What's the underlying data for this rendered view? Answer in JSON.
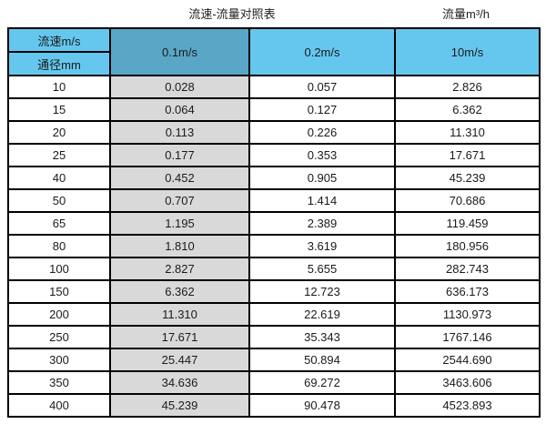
{
  "page": {
    "title_left": "流速-流量对照表",
    "title_right": "流量m³/h"
  },
  "table": {
    "corner": {
      "top": "流速m/s",
      "bottom": "通径mm"
    },
    "velocity_headers": [
      "0.1m/s",
      "0.2m/s",
      "10m/s"
    ],
    "rows": [
      [
        "10",
        "0.028",
        "0.057",
        "2.826"
      ],
      [
        "15",
        "0.064",
        "0.127",
        "6.362"
      ],
      [
        "20",
        "0.113",
        "0.226",
        "11.310"
      ],
      [
        "25",
        "0.177",
        "0.353",
        "17.671"
      ],
      [
        "40",
        "0.452",
        "0.905",
        "45.239"
      ],
      [
        "50",
        "0.707",
        "1.414",
        "70.686"
      ],
      [
        "65",
        "1.195",
        "2.389",
        "119.459"
      ],
      [
        "80",
        "1.810",
        "3.619",
        "180.956"
      ],
      [
        "100",
        "2.827",
        "5.655",
        "282.743"
      ],
      [
        "150",
        "6.362",
        "12.723",
        "636.173"
      ],
      [
        "200",
        "11.310",
        "22.619",
        "1130.973"
      ],
      [
        "250",
        "17.671",
        "35.343",
        "1767.146"
      ],
      [
        "300",
        "25.447",
        "50.894",
        "2544.690"
      ],
      [
        "350",
        "34.636",
        "69.272",
        "3463.606"
      ],
      [
        "400",
        "45.239",
        "90.478",
        "4523.893"
      ]
    ]
  },
  "colors": {
    "header_blue": "#66c7ee",
    "header_dark_blue": "#5aa6c7",
    "gray_column": "#d9d9d9",
    "border": "#000000",
    "text": "#1a1a1a"
  },
  "chart_data": {
    "type": "table",
    "title": "流速-流量对照表",
    "right_unit_label": "流量m³/h",
    "columns": [
      "通径mm",
      "0.1m/s",
      "0.2m/s",
      "10m/s"
    ],
    "rows": [
      [
        10,
        0.028,
        0.057,
        2.826
      ],
      [
        15,
        0.064,
        0.127,
        6.362
      ],
      [
        20,
        0.113,
        0.226,
        11.31
      ],
      [
        25,
        0.177,
        0.353,
        17.671
      ],
      [
        40,
        0.452,
        0.905,
        45.239
      ],
      [
        50,
        0.707,
        1.414,
        70.686
      ],
      [
        65,
        1.195,
        2.389,
        119.459
      ],
      [
        80,
        1.81,
        3.619,
        180.956
      ],
      [
        100,
        2.827,
        5.655,
        282.743
      ],
      [
        150,
        6.362,
        12.723,
        636.173
      ],
      [
        200,
        11.31,
        22.619,
        1130.973
      ],
      [
        250,
        17.671,
        35.343,
        1767.146
      ],
      [
        300,
        25.447,
        50.894,
        2544.69
      ],
      [
        350,
        34.636,
        69.272,
        3463.606
      ],
      [
        400,
        45.239,
        90.478,
        4523.893
      ]
    ]
  }
}
